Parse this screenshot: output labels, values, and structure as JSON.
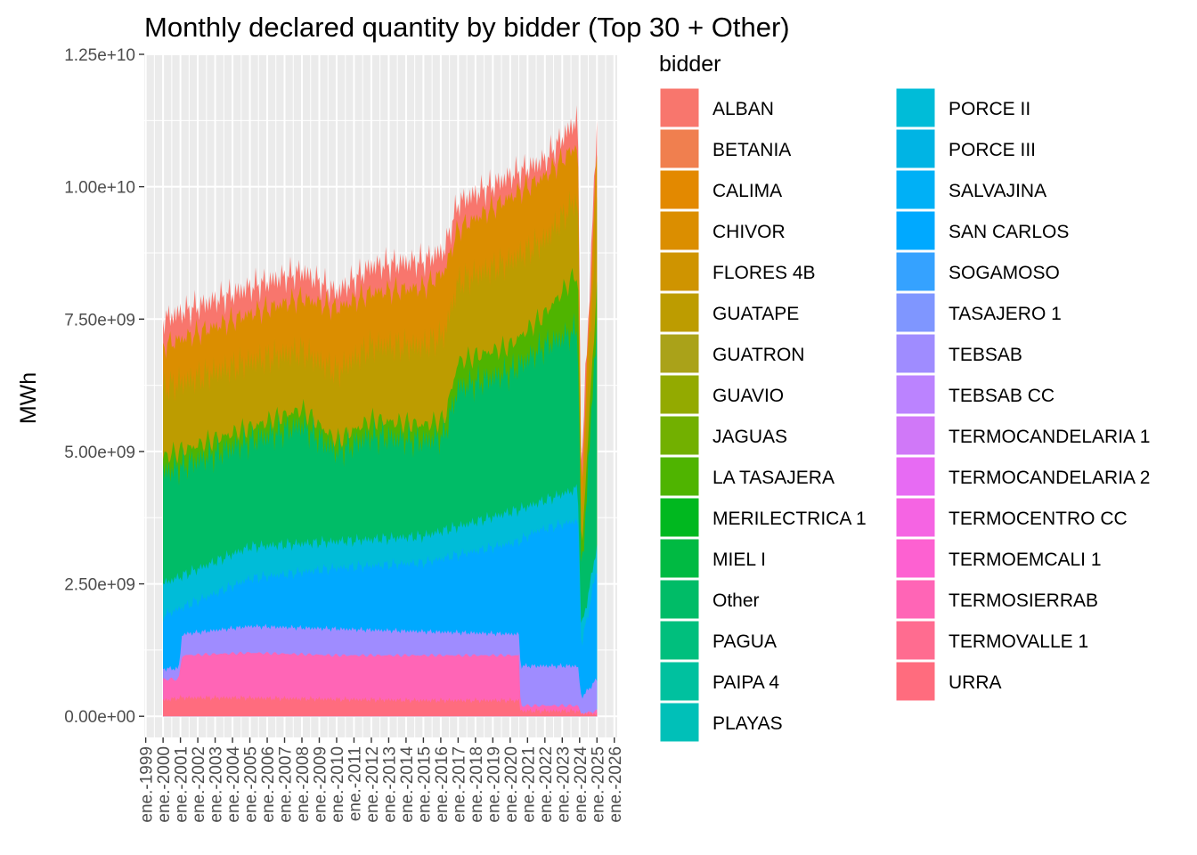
{
  "chart_data": {
    "type": "area",
    "stacked": true,
    "title": "Monthly declared quantity by bidder (Top 30 + Other)",
    "xlabel": "",
    "ylabel": "MWh",
    "ylim": [
      -400000000,
      12500000000
    ],
    "y_ticks": [
      0,
      2500000000,
      5000000000,
      7500000000,
      10000000000,
      12500000000
    ],
    "y_tick_labels": [
      "0.00e+00",
      "2.50e+09",
      "5.00e+09",
      "7.50e+09",
      "1.00e+10",
      "1.25e+10"
    ],
    "x_range": [
      "1998-12-01",
      "2026-03-01"
    ],
    "x_tick_labels": [
      "ene.-1999",
      "ene.-2000",
      "ene.-2001",
      "ene.-2002",
      "ene.-2003",
      "ene.-2004",
      "ene.-2005",
      "ene.-2006",
      "ene.-2007",
      "ene.-2008",
      "ene.-2009",
      "ene.-2010",
      "ene.-2011",
      "ene.-2012",
      "ene.-2013",
      "ene.-2014",
      "ene.-2015",
      "ene.-2016",
      "ene.-2017",
      "ene.-2018",
      "ene.-2019",
      "ene.-2020",
      "ene.-2021",
      "ene.-2022",
      "ene.-2023",
      "ene.-2024",
      "ene.-2025",
      "ene.-2026"
    ],
    "data_start": "2000-01-01",
    "data_end": "2025-01-01",
    "grid": true,
    "legend_title": "bidder",
    "legend_position": "right",
    "legend_columns": 2,
    "series": [
      {
        "name": "ALBAN",
        "color": "#F8766D"
      },
      {
        "name": "BETANIA",
        "color": "#F07F4F"
      },
      {
        "name": "CALIMA",
        "color": "#E38900"
      },
      {
        "name": "CHIVOR",
        "color": "#DB8E00"
      },
      {
        "name": "FLORES 4B",
        "color": "#CF9400"
      },
      {
        "name": "GUATAPE",
        "color": "#BD9C00"
      },
      {
        "name": "GUATRON",
        "color": "#AAA219"
      },
      {
        "name": "GUAVIO",
        "color": "#93AA00"
      },
      {
        "name": "JAGUAS",
        "color": "#72B000"
      },
      {
        "name": "LA TASAJERA",
        "color": "#4FB400"
      },
      {
        "name": "MERILECTRICA 1",
        "color": "#00B81F"
      },
      {
        "name": "MIEL I",
        "color": "#00BA42"
      },
      {
        "name": "Other",
        "color": "#00BC67"
      },
      {
        "name": "PAGUA",
        "color": "#00BF7D"
      },
      {
        "name": "PAIPA 4",
        "color": "#00C19F"
      },
      {
        "name": "PLAYAS",
        "color": "#00C0B8"
      },
      {
        "name": "PORCE II",
        "color": "#00BCD8"
      },
      {
        "name": "PORCE III",
        "color": "#00B4E4"
      },
      {
        "name": "SALVAJINA",
        "color": "#00B0F6"
      },
      {
        "name": "SAN CARLOS",
        "color": "#00A9FF"
      },
      {
        "name": "SOGAMOSO",
        "color": "#35A2FF"
      },
      {
        "name": "TASAJERO 1",
        "color": "#7F96FF"
      },
      {
        "name": "TEBSAB",
        "color": "#9F8CFF"
      },
      {
        "name": "TEBSAB CC",
        "color": "#BB83FF"
      },
      {
        "name": "TERMOCANDELARIA 1",
        "color": "#D078F8"
      },
      {
        "name": "TERMOCANDELARIA 2",
        "color": "#E76BF3"
      },
      {
        "name": "TERMOCENTRO CC",
        "color": "#F564E3"
      },
      {
        "name": "TERMOEMCALI 1",
        "color": "#FD61D1"
      },
      {
        "name": "TERMOSIERRAB",
        "color": "#FF65B6"
      },
      {
        "name": "TERMOVALLE 1",
        "color": "#FF6C90"
      },
      {
        "name": "URRA",
        "color": "#FF6C7E"
      }
    ],
    "bands": [
      {
        "color": "#FF6C7E",
        "values": [
          [
            2000,
            0.3
          ],
          [
            2001,
            0.35
          ],
          [
            2004,
            0.35
          ],
          [
            2015,
            0.3
          ],
          [
            2020.5,
            0.3
          ],
          [
            2020.6,
            0.1
          ],
          [
            2023.9,
            0.1
          ],
          [
            2024.1,
            0.05
          ],
          [
            2025,
            0.05
          ]
        ]
      },
      {
        "color": "#FF65B6",
        "values": [
          [
            2000,
            0.7
          ],
          [
            2000.9,
            0.7
          ],
          [
            2001.1,
            1.15
          ],
          [
            2005,
            1.2
          ],
          [
            2010,
            1.15
          ],
          [
            2015,
            1.15
          ],
          [
            2020.5,
            1.15
          ],
          [
            2020.6,
            0.2
          ],
          [
            2023.9,
            0.2
          ],
          [
            2024.1,
            0.05
          ],
          [
            2025,
            0.1
          ]
        ]
      },
      {
        "color": "#9F8CFF",
        "values": [
          [
            2000,
            0.9
          ],
          [
            2000.9,
            0.9
          ],
          [
            2001.1,
            1.55
          ],
          [
            2005,
            1.7
          ],
          [
            2010,
            1.65
          ],
          [
            2015,
            1.6
          ],
          [
            2020.5,
            1.55
          ],
          [
            2020.6,
            0.95
          ],
          [
            2023.9,
            0.95
          ],
          [
            2024.1,
            0.35
          ],
          [
            2025,
            0.7
          ]
        ]
      },
      {
        "color": "#00A9FF",
        "values": [
          [
            2000,
            1.9
          ],
          [
            2005,
            2.6
          ],
          [
            2010,
            2.8
          ],
          [
            2015,
            2.9
          ],
          [
            2020.5,
            3.3
          ],
          [
            2021.5,
            3.5
          ],
          [
            2023.9,
            3.7
          ],
          [
            2024.1,
            1.3
          ],
          [
            2025,
            2.8
          ]
        ]
      },
      {
        "color": "#00BCD8",
        "values": [
          [
            2000,
            2.5
          ],
          [
            2005,
            3.2
          ],
          [
            2010,
            3.3
          ],
          [
            2015,
            3.4
          ],
          [
            2020.5,
            3.9
          ],
          [
            2023.9,
            4.3
          ],
          [
            2024.1,
            1.6
          ],
          [
            2025,
            3.2
          ]
        ]
      },
      {
        "color": "#00BC67",
        "values": [
          [
            2000,
            4.6
          ],
          [
            2005,
            5.2
          ],
          [
            2008,
            5.5
          ],
          [
            2010,
            5.0
          ],
          [
            2012,
            5.3
          ],
          [
            2015,
            5.2
          ],
          [
            2016.2,
            5.3
          ],
          [
            2017,
            6.2
          ],
          [
            2020,
            6.5
          ],
          [
            2022,
            7.0
          ],
          [
            2023.9,
            7.3
          ],
          [
            2024.1,
            2.5
          ],
          [
            2025,
            7.5
          ]
        ]
      },
      {
        "color": "#4FB400",
        "values": [
          [
            2000,
            4.9
          ],
          [
            2005,
            5.45
          ],
          [
            2008,
            5.8
          ],
          [
            2010,
            5.2
          ],
          [
            2012,
            5.6
          ],
          [
            2015,
            5.5
          ],
          [
            2016.2,
            5.6
          ],
          [
            2017,
            6.7
          ],
          [
            2020,
            7.0
          ],
          [
            2022,
            7.6
          ],
          [
            2023.9,
            8.4
          ],
          [
            2024.1,
            3.0
          ],
          [
            2025,
            8.2
          ]
        ]
      },
      {
        "color": "#BD9C00",
        "values": [
          [
            2000,
            6.2
          ],
          [
            2005,
            6.7
          ],
          [
            2008,
            6.9
          ],
          [
            2010,
            6.5
          ],
          [
            2012,
            7.0
          ],
          [
            2015,
            7.0
          ],
          [
            2016.2,
            7.2
          ],
          [
            2017,
            8.2
          ],
          [
            2020,
            8.6
          ],
          [
            2022,
            9.0
          ],
          [
            2023.9,
            9.8
          ],
          [
            2024.1,
            3.6
          ],
          [
            2025,
            9.8
          ]
        ]
      },
      {
        "color": "#DB8E00",
        "values": [
          [
            2000,
            7.0
          ],
          [
            2005,
            7.6
          ],
          [
            2008,
            7.9
          ],
          [
            2010,
            7.7
          ],
          [
            2012,
            8.0
          ],
          [
            2015,
            8.1
          ],
          [
            2016.2,
            8.4
          ],
          [
            2017,
            9.2
          ],
          [
            2020,
            9.8
          ],
          [
            2022,
            10.2
          ],
          [
            2023.9,
            10.8
          ],
          [
            2024.1,
            4.2
          ],
          [
            2025,
            10.7
          ]
        ]
      },
      {
        "color": "#F8766D",
        "values": [
          [
            2000,
            7.5
          ],
          [
            2005,
            8.1
          ],
          [
            2008,
            8.4
          ],
          [
            2010,
            8.0
          ],
          [
            2012,
            8.5
          ],
          [
            2015,
            8.6
          ],
          [
            2016.2,
            8.8
          ],
          [
            2017,
            9.7
          ],
          [
            2020,
            10.2
          ],
          [
            2022,
            10.5
          ],
          [
            2023.9,
            11.3
          ],
          [
            2024.1,
            4.6
          ],
          [
            2025,
            11.2
          ]
        ]
      }
    ]
  }
}
